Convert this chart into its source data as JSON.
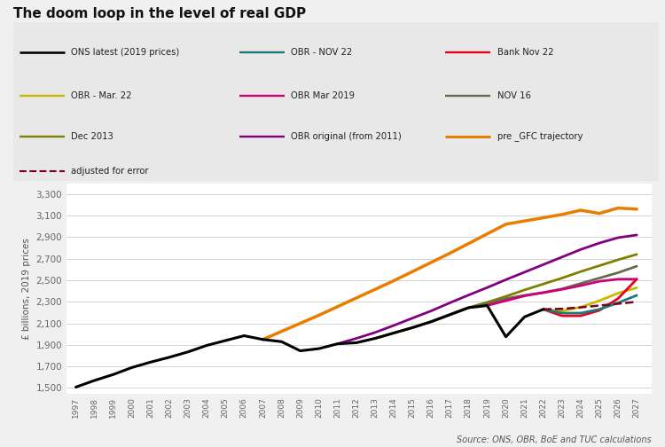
{
  "title": "The doom loop in the level of real GDP",
  "ylabel": "£ billions, 2019 prices",
  "source": "Source: ONS, OBR, BoE and TUC calculations",
  "background_color": "#f0f0f0",
  "plot_bg_color": "#ffffff",
  "legend_bg_color": "#e8e8e8",
  "ylim": [
    1450,
    3400
  ],
  "yticks": [
    1500,
    1700,
    1900,
    2100,
    2300,
    2500,
    2700,
    2900,
    3100,
    3300
  ],
  "ons_latest": {
    "label": "ONS latest (2019 prices)",
    "color": "#000000",
    "lw": 2.2,
    "x": [
      1997,
      1998,
      1999,
      2000,
      2001,
      2002,
      2003,
      2004,
      2005,
      2006,
      2007,
      2008,
      2009,
      2010,
      2011,
      2012,
      2013,
      2014,
      2015,
      2016,
      2017,
      2018,
      2019,
      2020,
      2021,
      2022
    ],
    "y": [
      1508,
      1570,
      1625,
      1690,
      1740,
      1785,
      1835,
      1895,
      1940,
      1985,
      1950,
      1930,
      1845,
      1865,
      1910,
      1920,
      1960,
      2010,
      2060,
      2115,
      2180,
      2245,
      2265,
      1975,
      2160,
      2230
    ]
  },
  "obr_nov22": {
    "label": "OBR - NOV 22",
    "color": "#1a7a7a",
    "lw": 2.0,
    "x": [
      2022,
      2023,
      2024,
      2025,
      2026,
      2027
    ],
    "y": [
      2230,
      2195,
      2195,
      2230,
      2290,
      2360
    ]
  },
  "bank_nov22": {
    "label": "Bank Nov 22",
    "color": "#e8001c",
    "lw": 2.0,
    "x": [
      2022,
      2023,
      2024,
      2025,
      2026,
      2027
    ],
    "y": [
      2230,
      2170,
      2170,
      2220,
      2330,
      2510
    ]
  },
  "obr_mar22": {
    "label": "OBR - Mar. 22",
    "color": "#c8b800",
    "lw": 2.0,
    "x": [
      2022,
      2023,
      2024,
      2025,
      2026,
      2027
    ],
    "y": [
      2230,
      2215,
      2250,
      2310,
      2380,
      2430
    ]
  },
  "obr_mar2019": {
    "label": "OBR Mar 2019",
    "color": "#cc007a",
    "lw": 2.0,
    "x": [
      2019,
      2020,
      2021,
      2022,
      2023,
      2024,
      2025,
      2026,
      2027
    ],
    "y": [
      2265,
      2310,
      2355,
      2385,
      2415,
      2450,
      2490,
      2510,
      2510
    ]
  },
  "nov16": {
    "label": "NOV 16",
    "color": "#696950",
    "lw": 2.0,
    "x": [
      2016,
      2017,
      2018,
      2019,
      2020,
      2021,
      2022,
      2023,
      2024,
      2025,
      2026,
      2027
    ],
    "y": [
      2115,
      2180,
      2245,
      2280,
      2330,
      2360,
      2385,
      2420,
      2470,
      2520,
      2570,
      2630
    ]
  },
  "dec2013": {
    "label": "Dec 2013",
    "color": "#808000",
    "lw": 2.0,
    "x": [
      2013,
      2014,
      2015,
      2016,
      2017,
      2018,
      2019,
      2020,
      2021,
      2022,
      2023,
      2024,
      2025,
      2026,
      2027
    ],
    "y": [
      1960,
      2010,
      2060,
      2115,
      2180,
      2245,
      2295,
      2350,
      2410,
      2465,
      2520,
      2580,
      2635,
      2690,
      2740
    ]
  },
  "obr_orig": {
    "label": "OBR original (from 2011)",
    "color": "#800080",
    "lw": 2.0,
    "x": [
      2011,
      2012,
      2013,
      2014,
      2015,
      2016,
      2017,
      2018,
      2019,
      2020,
      2021,
      2022,
      2023,
      2024,
      2025,
      2026,
      2027
    ],
    "y": [
      1910,
      1960,
      2015,
      2080,
      2148,
      2215,
      2290,
      2362,
      2432,
      2505,
      2575,
      2645,
      2715,
      2785,
      2845,
      2895,
      2920
    ]
  },
  "pre_gfc": {
    "label": "pre _GFC trajectory",
    "color": "#e87d00",
    "lw": 2.5,
    "x": [
      2007,
      2008,
      2009,
      2010,
      2011,
      2012,
      2013,
      2014,
      2015,
      2016,
      2017,
      2018,
      2019,
      2020,
      2021,
      2022,
      2023,
      2024,
      2025,
      2026,
      2027
    ],
    "y": [
      1950,
      2025,
      2100,
      2175,
      2255,
      2335,
      2415,
      2495,
      2580,
      2665,
      2750,
      2840,
      2930,
      3020,
      3050,
      3080,
      3110,
      3150,
      3120,
      3170,
      3160
    ]
  },
  "adj_error": {
    "label": "adjusted for error",
    "color": "#7b0020",
    "lw": 1.8,
    "linestyle": "--",
    "x": [
      2022,
      2023,
      2024,
      2025,
      2026,
      2027
    ],
    "y": [
      2230,
      2235,
      2248,
      2265,
      2282,
      2300
    ]
  }
}
